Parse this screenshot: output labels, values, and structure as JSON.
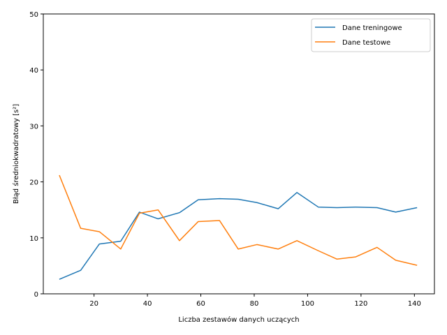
{
  "chart_data": {
    "type": "line",
    "xlabel": "Liczba zestawów danych uczących",
    "ylabel": "Błąd średniokwadratowy [s²]",
    "xlim": [
      1,
      147.5
    ],
    "ylim": [
      0,
      50
    ],
    "xticks": [
      20,
      40,
      60,
      80,
      100,
      120,
      140
    ],
    "yticks": [
      0,
      10,
      20,
      30,
      40,
      50
    ],
    "grid": false,
    "legend_position": "top-right",
    "x": [
      7,
      15,
      22,
      30,
      37,
      44,
      52,
      59,
      67,
      74,
      81,
      89,
      96,
      104,
      111,
      118,
      126,
      133,
      141
    ],
    "series": [
      {
        "name": "Dane treningowe",
        "color": "#1f77b4",
        "values": [
          2.6,
          4.2,
          8.9,
          9.4,
          14.6,
          13.4,
          14.5,
          16.8,
          17.0,
          16.9,
          16.3,
          15.2,
          18.1,
          15.5,
          15.4,
          15.5,
          15.4,
          14.6,
          15.4
        ]
      },
      {
        "name": "Dane testowe",
        "color": "#ff7f0e",
        "values": [
          21.2,
          11.7,
          11.1,
          8.0,
          14.4,
          15.0,
          9.5,
          12.9,
          13.1,
          8.0,
          8.8,
          8.0,
          9.5,
          7.7,
          6.2,
          6.6,
          8.3,
          6.0,
          5.1
        ]
      }
    ]
  }
}
